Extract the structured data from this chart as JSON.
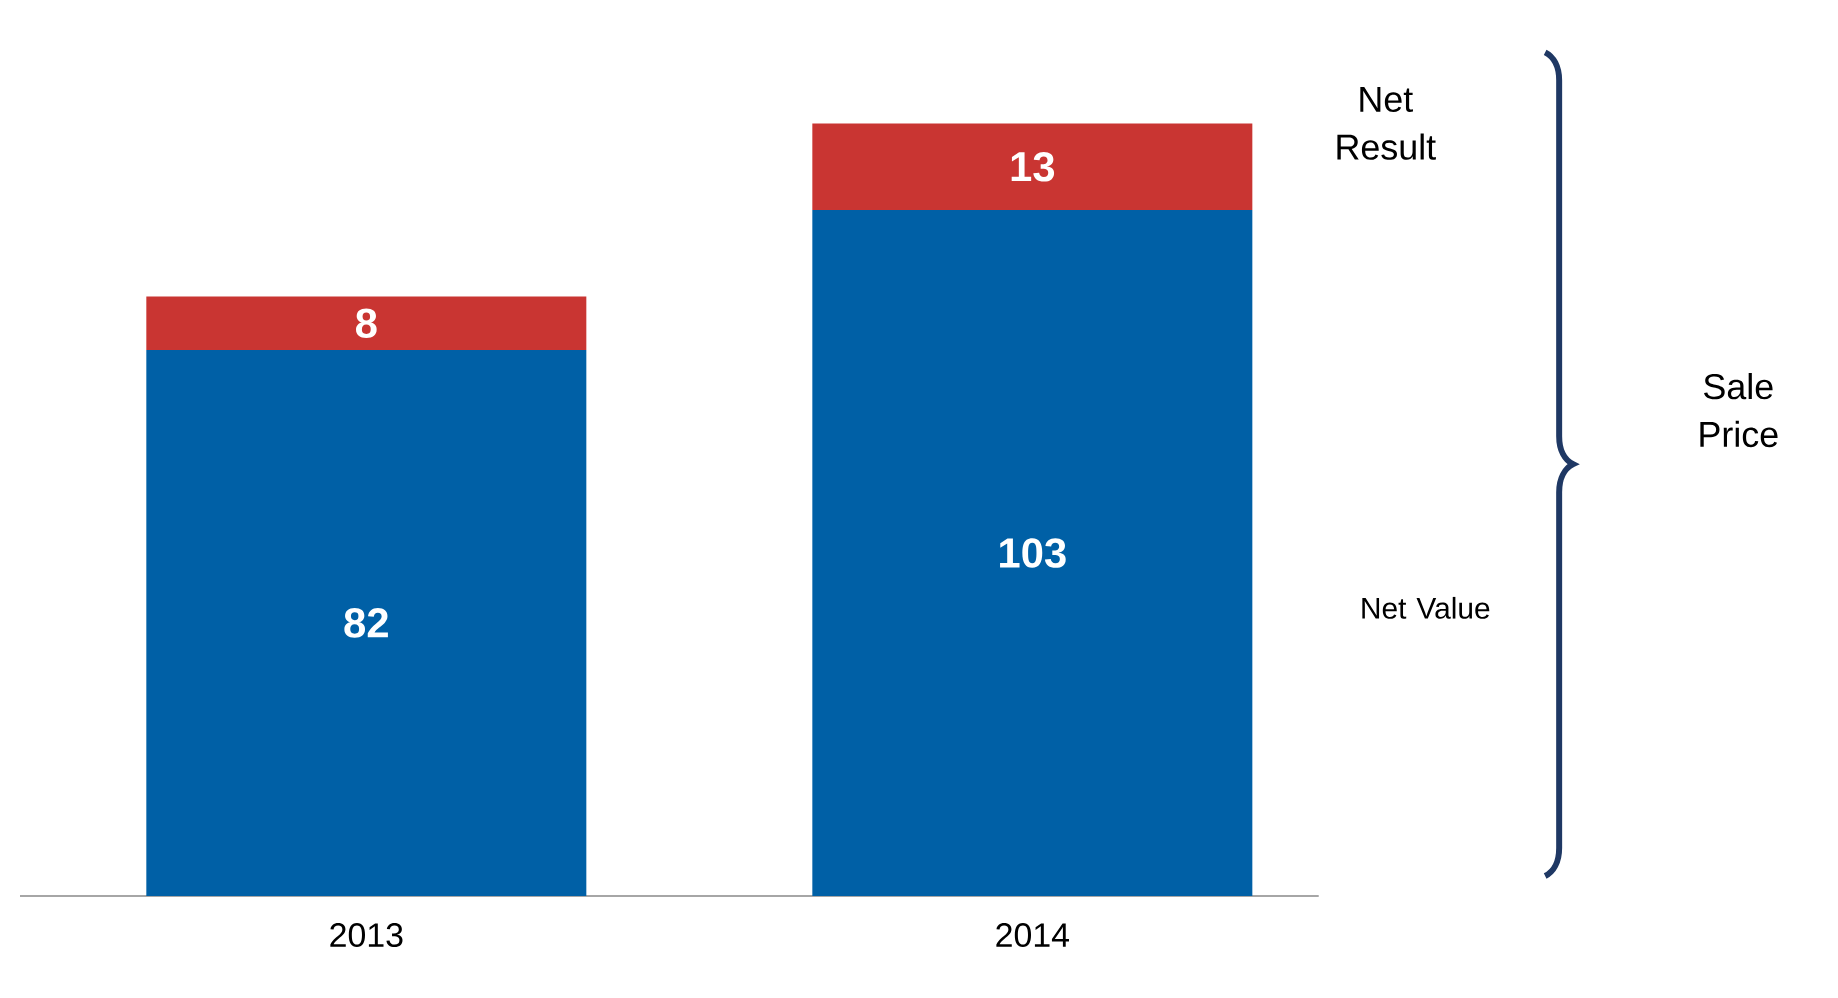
{
  "chart_data": {
    "type": "bar",
    "stacked": true,
    "categories": [
      "2013",
      "2014"
    ],
    "series": [
      {
        "name": "Net Value",
        "color": "#0060a6",
        "values": [
          82,
          103
        ]
      },
      {
        "name": "Net Result",
        "color": "#c93532",
        "values": [
          8,
          13
        ]
      }
    ],
    "data_labels": true,
    "legend": false,
    "grid": false,
    "annotations": [
      "Sale Price"
    ]
  }
}
